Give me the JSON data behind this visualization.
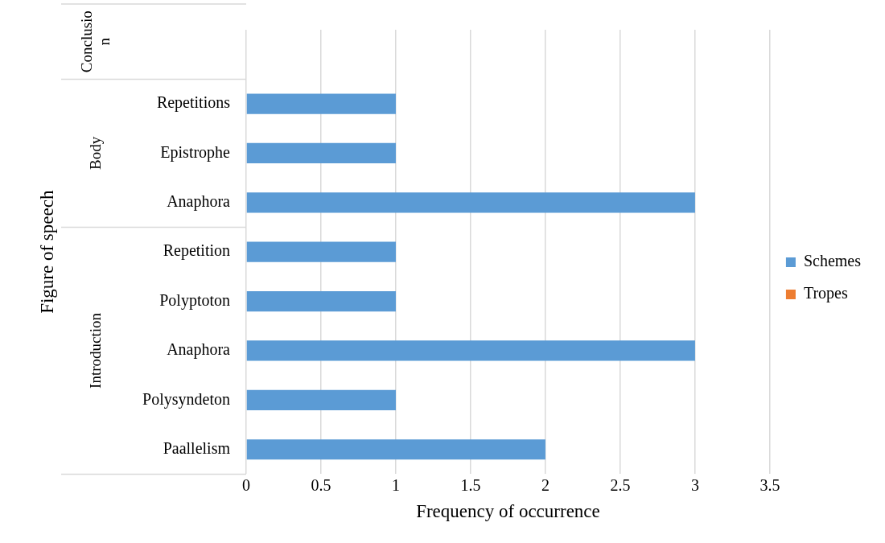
{
  "chart_data": {
    "type": "bar",
    "orientation": "horizontal",
    "stacked": true,
    "xlabel": "Frequency of occurrence",
    "ylabel": "Figure of speech",
    "categories": [
      null,
      "Repetitions",
      "Epistrophe",
      "Anaphora",
      "Repetition",
      "Polyptoton",
      "Anaphora",
      "Polysyndeton",
      "Paallelism"
    ],
    "series": [
      {
        "name": "Schemes",
        "color": "#5b9bd5",
        "values": [
          null,
          1,
          1,
          3,
          1,
          1,
          3,
          1,
          2
        ]
      },
      {
        "name": "Tropes",
        "color": "#ed7d31",
        "values": [
          null,
          null,
          null,
          null,
          null,
          null,
          null,
          null,
          null
        ]
      }
    ],
    "annotations": [
      "Conclusion",
      "Body",
      "Introduction"
    ],
    "xlim": [
      0,
      3.5
    ],
    "xticks": [
      0,
      0.5,
      1,
      1.5,
      2,
      2.5,
      3,
      3.5
    ],
    "grid": "x",
    "legend": "right"
  }
}
